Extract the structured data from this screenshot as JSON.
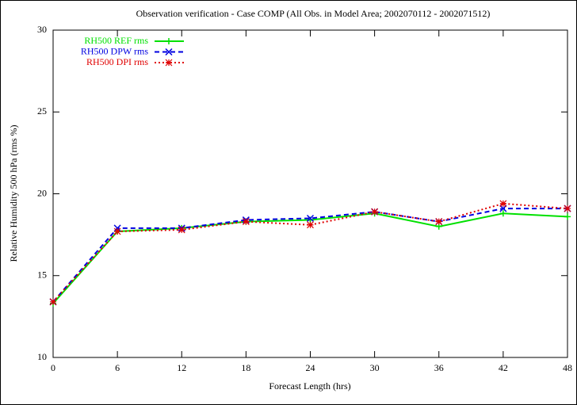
{
  "chart_data": {
    "type": "line",
    "title": "Observation verification - Case COMP (All Obs. in Model Area; 2002070112 - 2002071512)",
    "x_label": "Forecast Length (hrs)",
    "y_label": "Relative Humidity 500 hPa (rms %)",
    "x": [
      0,
      6,
      12,
      18,
      24,
      30,
      36,
      42,
      48
    ],
    "xlim": [
      0,
      48
    ],
    "xticks": [
      0,
      6,
      12,
      18,
      24,
      30,
      36,
      42,
      48
    ],
    "ylim": [
      10,
      30
    ],
    "yticks": [
      10,
      15,
      20,
      25,
      30
    ],
    "grid": false,
    "legend": "top-left",
    "series": [
      {
        "name": "RH500 REF rms",
        "color": "#00e000",
        "style": "solid",
        "marker": "plus",
        "values": [
          13.3,
          17.7,
          17.9,
          18.3,
          18.4,
          18.8,
          18.0,
          18.8,
          18.6
        ]
      },
      {
        "name": "RH500 DPW rms",
        "color": "#0000e0",
        "style": "dashed",
        "marker": "cross",
        "values": [
          13.4,
          17.9,
          17.9,
          18.4,
          18.5,
          18.9,
          18.3,
          19.1,
          19.1
        ]
      },
      {
        "name": "RH500 DPI rms",
        "color": "#e00000",
        "style": "dotted",
        "marker": "star",
        "values": [
          13.4,
          17.7,
          17.8,
          18.3,
          18.1,
          18.9,
          18.3,
          19.4,
          19.1
        ]
      }
    ]
  }
}
